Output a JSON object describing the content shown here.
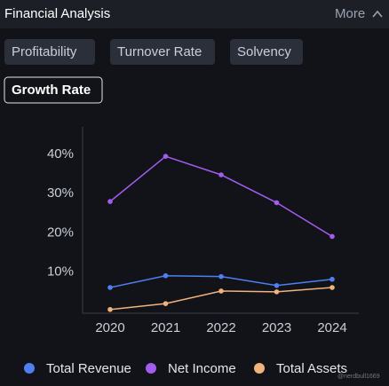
{
  "header": {
    "title": "Financial Analysis",
    "more": "More"
  },
  "tabs": [
    "Profitability",
    "Turnover Rate",
    "Solvency",
    "Growth Rate"
  ],
  "active_tab": "Growth Rate",
  "watermark": "@nerdbull1669",
  "chart_data": {
    "type": "line",
    "categories": [
      "2020",
      "2021",
      "2022",
      "2023",
      "2024"
    ],
    "series": [
      {
        "name": "Total Revenue",
        "color": "#4f7ff0",
        "values": [
          6.1,
          9.1,
          8.9,
          6.6,
          8.2
        ]
      },
      {
        "name": "Net Income",
        "color": "#a35cf0",
        "values": [
          28.0,
          39.5,
          34.8,
          27.7,
          19.1
        ]
      },
      {
        "name": "Total Assets",
        "color": "#f2b27c",
        "values": [
          0.5,
          2.0,
          5.2,
          5.0,
          6.1
        ]
      }
    ],
    "ylim": [
      0,
      47
    ],
    "yticks": [
      {
        "value": 10,
        "label": "10%"
      },
      {
        "value": 20,
        "label": "20%"
      },
      {
        "value": 30,
        "label": "30%"
      },
      {
        "value": 40,
        "label": "40%"
      }
    ],
    "grid": false
  }
}
